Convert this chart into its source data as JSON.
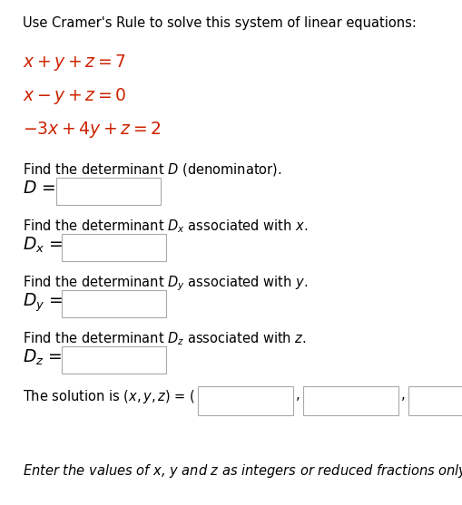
{
  "bg_color": "#ffffff",
  "text_color": "#000000",
  "red_color": "#cc2200",
  "title": "Use Cramer's Rule to solve this system of linear equations:",
  "eq1": "$x + y + z = 7$",
  "eq2": "$x - y + z = 0$",
  "eq3": "$-3x + 4y + z = 2$",
  "find_D": "Find the determinant $D$ (denominator).",
  "label_D": "$D$ =",
  "find_Dx": "Find the determinant $D_x$ associated with $x$.",
  "label_Dx": "$D_x$ =",
  "find_Dy": "Find the determinant $D_y$ associated with $y$.",
  "label_Dy": "$D_y$ =",
  "find_Dz": "Find the determinant $D_z$ associated with $z$.",
  "label_Dz": "$D_z$ =",
  "solution_text": "The solution is $(x, y, z)$ = (",
  "solution_suffix": ").",
  "footer": "Enter the values of $x$, $y$ and $z$ as integers or reduced fractions only.",
  "box_edge_color": "#aaaaaa",
  "title_fs": 10.5,
  "eq_fs": 13.5,
  "body_fs": 10.5,
  "label_fs": 13.5
}
